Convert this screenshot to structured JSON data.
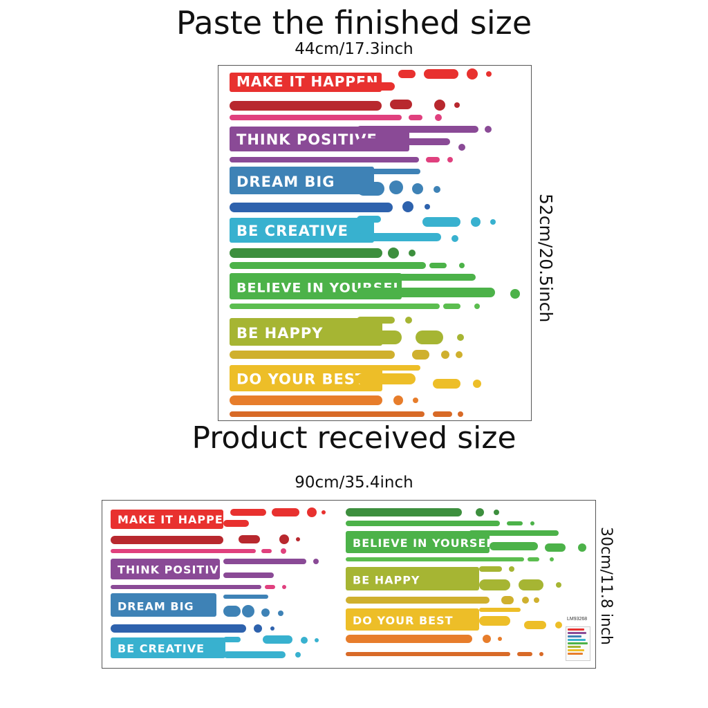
{
  "header": {
    "finished_title": "Paste the finished size",
    "finished_width": "44cm/17.3inch",
    "finished_height": "52cm/20.5inch",
    "received_title": "Product received size",
    "received_width": "90cm/35.4inch",
    "received_height": "30cm/11.8 inch"
  },
  "phrases": {
    "make_it_happen": "MAKE IT HAPPEN",
    "think_positive": "THINK POSITIVE",
    "dream_big": "DREAM BIG",
    "be_creative": "BE CREATIVE",
    "believe_in_yourself": "BELIEVE IN YOURSELF",
    "be_happy": "BE HAPPY",
    "do_your_best": "DO YOUR BEST"
  },
  "sku": "LM93268",
  "colors": {
    "red": "#e8312f",
    "dark_red": "#b8282e",
    "pink": "#e0407e",
    "purple": "#8a4a96",
    "blue": "#3e82b6",
    "dark_blue": "#2e62ad",
    "cyan": "#38b1cf",
    "dark_green": "#3d8f3e",
    "green": "#4cb249",
    "light_green": "#5bbd4f",
    "olive": "#a6b533",
    "mustard": "#cfb02e",
    "yellow": "#edbe28",
    "orange": "#e77d2b",
    "dark_orange": "#d86a27"
  }
}
